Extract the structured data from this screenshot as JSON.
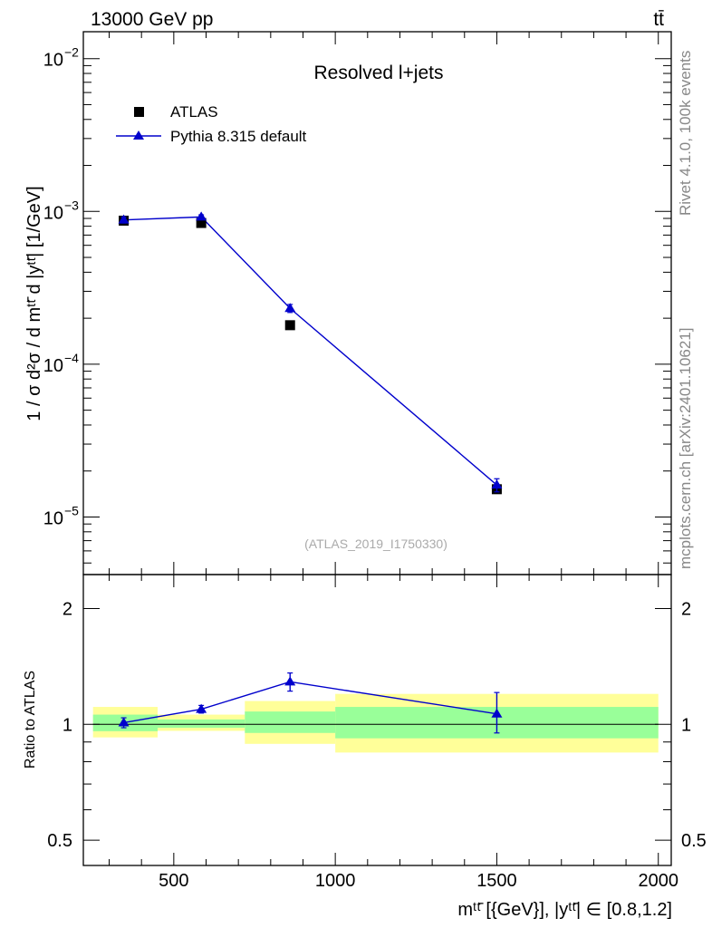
{
  "header": {
    "energy_label": "13000 GeV pp",
    "process_label": "tt̄"
  },
  "side_labels": {
    "rivet": "Rivet 4.1.0,  100k events",
    "source": "mcplots.cern.ch [arXiv:2401.10621]"
  },
  "chart_data": [
    {
      "type": "scatter",
      "panel": "main",
      "title": "Resolved l+jets",
      "watermark": "(ATLAS_2019_I1750330)",
      "ylabel": "1 / σ d²σ / d mᵗᵗ̄ d |yᵗᵗ̄| [1/GeV]",
      "yscale": "log",
      "xlim": [
        220,
        2040
      ],
      "ylim": [
        4.2e-06,
        0.015
      ],
      "y_ticks": [
        {
          "value": 1e-05,
          "label": "10",
          "exp": "−5"
        },
        {
          "value": 0.0001,
          "label": "10",
          "exp": "−4"
        },
        {
          "value": 0.001,
          "label": "10",
          "exp": "−3"
        },
        {
          "value": 0.01,
          "label": "10",
          "exp": "−2"
        }
      ],
      "legend": {
        "placement": "top-left",
        "entries": [
          {
            "label": "ATLAS",
            "marker": "square",
            "color": "#000000"
          },
          {
            "label": "Pythia 8.315 default",
            "marker": "triangle",
            "color": "#0000cc"
          }
        ]
      },
      "series": [
        {
          "name": "ATLAS",
          "color": "#000000",
          "x": [
            345,
            585,
            860,
            1500
          ],
          "y": [
            0.00087,
            0.00084,
            0.00018,
            1.52e-05
          ]
        },
        {
          "name": "Pythia 8.315 default",
          "color": "#0000cc",
          "x": [
            345,
            585,
            860,
            1500
          ],
          "y": [
            0.00088,
            0.00092,
            0.000232,
            1.62e-05
          ],
          "err_low": [
            0.00084,
            0.00089,
            0.000218,
            1.46e-05
          ],
          "err_high": [
            0.00092,
            0.00095,
            0.000246,
            1.78e-05
          ]
        }
      ]
    },
    {
      "type": "scatter",
      "panel": "ratio",
      "ylabel": "Ratio to ATLAS",
      "xlabel": "mᵗᵗ̄ [{GeV}], |yᵗᵗ̄| ∈ [0.8,1.2]",
      "yscale": "log",
      "xlim": [
        220,
        2040
      ],
      "ylim": [
        0.43,
        2.45
      ],
      "x_ticks": [
        500,
        1000,
        1500,
        2000
      ],
      "y_ticks": [
        {
          "value": 0.5,
          "label": "0.5"
        },
        {
          "value": 1,
          "label": "1"
        },
        {
          "value": 2,
          "label": "2"
        }
      ],
      "bands": [
        {
          "x0": 250,
          "x1": 450,
          "inner": [
            0.96,
            1.06
          ],
          "outer": [
            0.925,
            1.11
          ]
        },
        {
          "x0": 450,
          "x1": 720,
          "inner": [
            0.98,
            1.03
          ],
          "outer": [
            0.962,
            1.06
          ]
        },
        {
          "x0": 720,
          "x1": 1000,
          "inner": [
            0.95,
            1.08
          ],
          "outer": [
            0.89,
            1.15
          ]
        },
        {
          "x0": 1000,
          "x1": 2000,
          "inner": [
            0.92,
            1.11
          ],
          "outer": [
            0.845,
            1.2
          ]
        }
      ],
      "series": [
        {
          "name": "Pythia 8.315 default / ATLAS",
          "color": "#0000cc",
          "x": [
            345,
            585,
            860,
            1500
          ],
          "y": [
            1.01,
            1.095,
            1.29,
            1.065
          ],
          "err_low": [
            0.98,
            1.07,
            1.22,
            0.95
          ],
          "err_high": [
            1.04,
            1.12,
            1.36,
            1.21
          ]
        }
      ]
    }
  ]
}
